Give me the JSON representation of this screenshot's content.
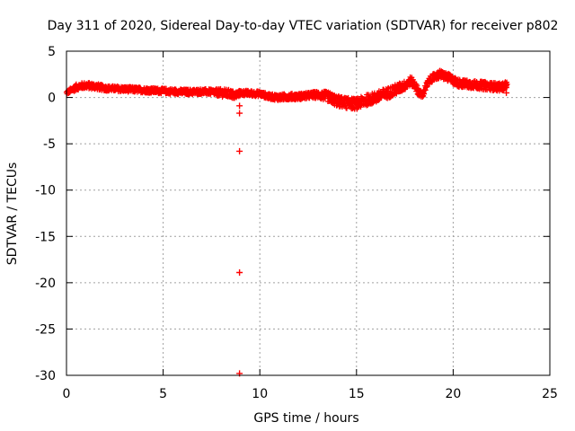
{
  "chart_data": {
    "type": "scatter",
    "title": "Day 311 of 2020, Sidereal Day-to-day VTEC variation (SDTVAR) for receiver p802",
    "xlabel": "GPS time / hours",
    "ylabel": "SDTVAR / TECUs",
    "xlim": [
      0,
      25
    ],
    "ylim": [
      -30,
      5
    ],
    "xticks": [
      0,
      5,
      10,
      15,
      20,
      25
    ],
    "yticks": [
      5,
      0,
      -5,
      -10,
      -15,
      -20,
      -25,
      -30
    ],
    "grid": true,
    "marker": "+",
    "series": [
      {
        "name": "SDTVAR",
        "color": "#ff0000",
        "trend": {
          "x": [
            0,
            0.25,
            0.5,
            0.75,
            1.0,
            1.5,
            2.0,
            2.5,
            3.0,
            3.5,
            4.0,
            4.5,
            5.0,
            5.5,
            6.0,
            6.5,
            7.0,
            7.5,
            8.0,
            8.5,
            8.7,
            9.0,
            9.5,
            10.0,
            10.5,
            11.0,
            11.5,
            12.0,
            12.5,
            13.0,
            13.5,
            14.0,
            14.5,
            15.0,
            15.5,
            16.0,
            16.5,
            17.0,
            17.5,
            17.8,
            18.0,
            18.2,
            18.4,
            18.6,
            18.8,
            19.0,
            19.3,
            19.6,
            19.9,
            20.2,
            20.5,
            21.0,
            21.5,
            22.0,
            22.5,
            22.8
          ],
          "y": [
            0.5,
            0.8,
            1.1,
            1.25,
            1.3,
            1.2,
            1.0,
            0.95,
            0.9,
            0.85,
            0.8,
            0.75,
            0.7,
            0.65,
            0.6,
            0.6,
            0.65,
            0.6,
            0.5,
            0.4,
            0.2,
            0.5,
            0.45,
            0.4,
            0.1,
            0.0,
            0.1,
            0.1,
            0.2,
            0.3,
            0.1,
            -0.4,
            -0.6,
            -0.7,
            -0.3,
            0.0,
            0.4,
            0.8,
            1.3,
            1.8,
            1.4,
            0.6,
            0.2,
            1.2,
            1.9,
            2.2,
            2.5,
            2.3,
            2.0,
            1.6,
            1.5,
            1.4,
            1.3,
            1.2,
            1.1,
            1.4
          ],
          "spread": [
            0.2,
            0.3,
            0.35,
            0.35,
            0.35,
            0.35,
            0.3,
            0.3,
            0.3,
            0.3,
            0.3,
            0.3,
            0.3,
            0.3,
            0.3,
            0.3,
            0.3,
            0.3,
            0.45,
            0.45,
            0.45,
            0.3,
            0.3,
            0.3,
            0.3,
            0.35,
            0.35,
            0.35,
            0.35,
            0.4,
            0.55,
            0.6,
            0.6,
            0.6,
            0.6,
            0.6,
            0.6,
            0.6,
            0.5,
            0.5,
            0.5,
            0.4,
            0.4,
            0.4,
            0.4,
            0.4,
            0.45,
            0.45,
            0.45,
            0.45,
            0.45,
            0.45,
            0.45,
            0.45,
            0.45,
            0.4
          ]
        },
        "outliers": [
          {
            "x": 8.95,
            "y": -0.9
          },
          {
            "x": 8.95,
            "y": -1.7
          },
          {
            "x": 8.95,
            "y": -5.8
          },
          {
            "x": 8.95,
            "y": -18.9
          },
          {
            "x": 8.95,
            "y": -29.8
          },
          {
            "x": 22.75,
            "y": 0.5
          }
        ]
      }
    ]
  }
}
